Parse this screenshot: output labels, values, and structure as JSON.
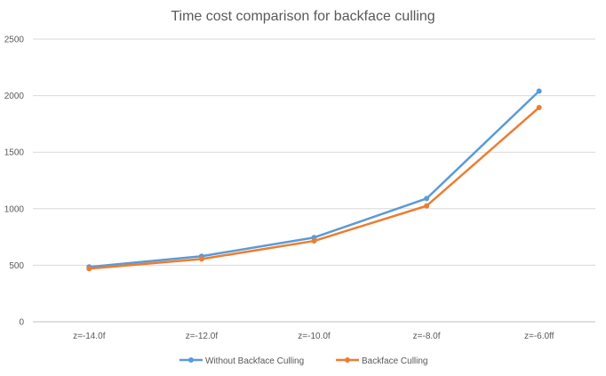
{
  "chart_data": {
    "type": "line",
    "title": "Time cost comparison for backface culling",
    "categories": [
      "z=-14.0f",
      "z=-12.0f",
      "z=-10.0f",
      "z=-8.0f",
      "z=-6.0ff"
    ],
    "ylim": [
      0,
      2500
    ],
    "yticks": [
      0,
      500,
      1000,
      1500,
      2000,
      2500
    ],
    "grid": true,
    "legend_position": "bottom",
    "series": [
      {
        "name": "Without Backface Culling",
        "color": "#5b9bd5",
        "values": [
          485,
          580,
          745,
          1090,
          2040
        ]
      },
      {
        "name": "Backface Culling",
        "color": "#ed7d31",
        "values": [
          470,
          555,
          715,
          1025,
          1895
        ]
      }
    ]
  }
}
